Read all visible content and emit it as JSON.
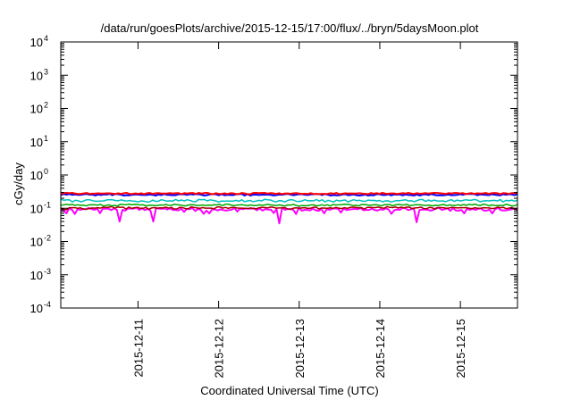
{
  "chart_data": {
    "type": "line",
    "title": "/data/run/goesPlots/archive/2015-12-15/17:00/flux/../bryn/5daysMoon.plot",
    "xlabel": "Coordinated Universal Time (UTC)",
    "ylabel": "cGy/day",
    "yscale": "log",
    "ylim": [
      0.0001,
      10000
    ],
    "y_ticks": [
      {
        "base": "10",
        "exp": "-4"
      },
      {
        "base": "10",
        "exp": "-3"
      },
      {
        "base": "10",
        "exp": "-2"
      },
      {
        "base": "10",
        "exp": "-1"
      },
      {
        "base": "10",
        "exp": "0"
      },
      {
        "base": "10",
        "exp": "1"
      },
      {
        "base": "10",
        "exp": "2"
      },
      {
        "base": "10",
        "exp": "3"
      },
      {
        "base": "10",
        "exp": "4"
      }
    ],
    "xlim": [
      "2015-12-10T01:00",
      "2015-12-15T17:00"
    ],
    "x_ticks": [
      "2015-12-11",
      "2015-12-12",
      "2015-12-13",
      "2015-12-14",
      "2015-12-15"
    ],
    "grid": false,
    "legend": "none",
    "series": [
      {
        "color": "#ff00ff",
        "values": [
          0.09,
          0.089,
          0.07,
          0.1,
          0.091,
          0.067,
          0.095,
          0.09,
          0.096,
          0.093,
          0.102,
          0.095,
          0.09,
          0.098,
          0.071,
          0.098,
          0.097,
          0.097,
          0.088,
          0.099,
          0.091,
          0.04,
          0.09,
          0.085,
          0.098,
          0.098,
          0.097,
          0.105,
          0.089,
          0.1,
          0.088,
          0.096,
          0.085,
          0.04,
          0.102,
          0.098,
          0.096,
          0.099,
          0.092,
          0.1,
          0.089,
          0.089,
          0.086,
          0.098,
          0.078,
          0.096,
          0.094,
          0.102,
          0.083,
          0.096,
          0.089,
          0.068,
          0.085,
          0.07,
          0.092,
          0.093,
          0.086,
          0.093,
          0.088,
          0.085,
          0.088,
          0.091,
          0.102,
          0.08,
          0.098,
          0.094,
          0.099,
          0.097,
          0.098,
          0.1,
          0.087,
          0.1,
          0.085,
          0.095,
          0.091,
          0.091,
          0.072,
          0.095,
          0.035,
          0.105,
          0.09,
          0.095,
          0.095,
          0.089,
          0.067,
          0.105,
          0.085,
          0.089,
          0.089,
          0.086,
          0.098,
          0.087,
          0.084,
          0.095,
          0.07,
          0.095,
          0.09,
          0.097,
          0.099,
          0.096,
          0.074,
          0.098,
          0.088,
          0.092,
          0.094,
          0.096,
          0.094,
          0.103,
          0.087,
          0.09,
          0.088,
          0.098,
          0.089,
          0.085,
          0.093,
          0.09,
          0.1,
          0.092,
          0.068,
          0.087,
          0.092,
          0.09,
          0.103,
          0.1,
          0.088,
          0.094,
          0.101,
          0.038,
          0.088,
          0.092,
          0.091,
          0.09,
          0.085,
          0.089,
          0.102,
          0.102,
          0.089,
          0.094,
          0.1,
          0.084,
          0.101,
          0.086,
          0.085,
          0.089,
          0.07,
          0.097,
          0.089,
          0.096,
          0.09,
          0.096,
          0.099,
          0.085,
          0.085,
          0.091,
          0.07,
          0.092,
          0.105,
          0.088,
          0.086,
          0.087,
          0.09,
          0.094,
          0.098,
          0.087
        ]
      },
      {
        "color": "#aa0000",
        "values": [
          0.102,
          0.094,
          0.09,
          0.104,
          0.104,
          0.104,
          0.1,
          0.103,
          0.093,
          0.094,
          0.098,
          0.102,
          0.101,
          0.104,
          0.101,
          0.108,
          0.105,
          0.108,
          0.112,
          0.101,
          0.109,
          0.107,
          0.108,
          0.095,
          0.109,
          0.1,
          0.104,
          0.107,
          0.1,
          0.1,
          0.106,
          0.093,
          0.102,
          0.105,
          0.1,
          0.103,
          0.102,
          0.108,
          0.101,
          0.106,
          0.095,
          0.096,
          0.107,
          0.104,
          0.097,
          0.097,
          0.111,
          0.106,
          0.102,
          0.1,
          0.105,
          0.101,
          0.101,
          0.101,
          0.096,
          0.108,
          0.111,
          0.101,
          0.106,
          0.1,
          0.105,
          0.107,
          0.102,
          0.101,
          0.101,
          0.099,
          0.098,
          0.103,
          0.097,
          0.097,
          0.104,
          0.106,
          0.105,
          0.103,
          0.109,
          0.106,
          0.101,
          0.102,
          0.103,
          0.104,
          0.095,
          0.093,
          0.101,
          0.103,
          0.1,
          0.102,
          0.104,
          0.099,
          0.1,
          0.107,
          0.108,
          0.095,
          0.102,
          0.101,
          0.1,
          0.103,
          0.1,
          0.106,
          0.101,
          0.098,
          0.104,
          0.1,
          0.106,
          0.108,
          0.106,
          0.102,
          0.105,
          0.095,
          0.106,
          0.107,
          0.105,
          0.105,
          0.109,
          0.103,
          0.1,
          0.112,
          0.106,
          0.105,
          0.109,
          0.102,
          0.108,
          0.102,
          0.109,
          0.107,
          0.096,
          0.103,
          0.104,
          0.108,
          0.097,
          0.097,
          0.106,
          0.103,
          0.094,
          0.105,
          0.105,
          0.104,
          0.099,
          0.102,
          0.107,
          0.104,
          0.102,
          0.104,
          0.104,
          0.104,
          0.1,
          0.098,
          0.104,
          0.1,
          0.1,
          0.104,
          0.103,
          0.102,
          0.098,
          0.1,
          0.108,
          0.104,
          0.107,
          0.097,
          0.101,
          0.105,
          0.096,
          0.099
        ]
      },
      {
        "color": "#00aa00",
        "values": [
          0.123,
          0.127,
          0.131,
          0.127,
          0.13,
          0.123,
          0.127,
          0.122,
          0.124,
          0.118,
          0.127,
          0.127,
          0.127,
          0.124,
          0.131,
          0.118,
          0.121,
          0.127,
          0.118,
          0.122,
          0.117,
          0.132,
          0.129,
          0.128,
          0.133,
          0.127,
          0.131,
          0.13,
          0.125,
          0.128,
          0.118,
          0.122,
          0.124,
          0.12,
          0.12,
          0.126,
          0.124,
          0.13,
          0.123,
          0.122,
          0.132,
          0.128,
          0.125,
          0.12,
          0.118,
          0.125,
          0.128,
          0.127,
          0.121,
          0.122,
          0.125,
          0.121,
          0.124,
          0.122,
          0.128,
          0.126,
          0.131,
          0.12,
          0.132,
          0.133,
          0.125,
          0.119,
          0.124,
          0.126,
          0.128,
          0.123,
          0.119,
          0.126,
          0.121,
          0.12,
          0.127,
          0.122,
          0.126,
          0.131,
          0.126,
          0.123,
          0.121,
          0.126,
          0.122,
          0.116,
          0.126,
          0.124,
          0.132,
          0.121,
          0.117,
          0.121,
          0.119,
          0.119,
          0.125,
          0.127,
          0.119,
          0.121,
          0.128,
          0.12,
          0.128,
          0.117,
          0.13,
          0.125,
          0.127,
          0.128,
          0.132,
          0.131,
          0.128,
          0.121,
          0.123,
          0.117,
          0.129,
          0.13,
          0.126,
          0.122,
          0.126,
          0.128,
          0.124,
          0.118,
          0.128,
          0.129,
          0.129,
          0.118,
          0.126,
          0.131,
          0.127,
          0.125,
          0.132,
          0.119,
          0.123,
          0.128,
          0.127,
          0.126,
          0.122,
          0.122,
          0.124,
          0.118,
          0.123,
          0.12,
          0.126,
          0.13,
          0.12,
          0.126,
          0.122,
          0.121,
          0.128,
          0.122,
          0.129,
          0.122,
          0.132,
          0.126,
          0.133,
          0.124,
          0.121,
          0.133,
          0.128,
          0.118,
          0.126,
          0.121,
          0.12,
          0.122,
          0.12,
          0.133,
          0.125,
          0.117,
          0.119,
          0.13
        ]
      },
      {
        "color": "#00bfbf",
        "values": [
          0.186,
          0.175,
          0.178,
          0.181,
          0.155,
          0.173,
          0.169,
          0.157,
          0.165,
          0.181,
          0.18,
          0.17,
          0.162,
          0.162,
          0.166,
          0.167,
          0.178,
          0.182,
          0.181,
          0.171,
          0.169,
          0.178,
          0.171,
          0.164,
          0.172,
          0.163,
          0.162,
          0.156,
          0.167,
          0.162,
          0.155,
          0.157,
          0.176,
          0.16,
          0.163,
          0.181,
          0.173,
          0.163,
          0.168,
          0.164,
          0.184,
          0.168,
          0.177,
          0.166,
          0.18,
          0.172,
          0.16,
          0.158,
          0.184,
          0.181,
          0.184,
          0.167,
          0.179,
          0.173,
          0.165,
          0.154,
          0.165,
          0.162,
          0.165,
          0.163,
          0.163,
          0.173,
          0.162,
          0.179,
          0.158,
          0.167,
          0.172,
          0.158,
          0.164,
          0.173,
          0.167,
          0.186,
          0.18,
          0.177,
          0.163,
          0.156,
          0.17,
          0.168,
          0.155,
          0.172,
          0.182,
          0.177,
          0.161,
          0.16,
          0.165,
          0.181,
          0.168,
          0.169,
          0.168,
          0.183,
          0.164,
          0.18,
          0.156,
          0.173,
          0.164,
          0.156,
          0.175,
          0.166,
          0.172,
          0.177,
          0.155,
          0.17,
          0.181,
          0.17,
          0.174,
          0.163,
          0.161,
          0.176,
          0.172,
          0.173,
          0.165,
          0.172,
          0.157,
          0.167,
          0.168,
          0.155,
          0.163,
          0.171,
          0.169,
          0.175,
          0.181,
          0.166,
          0.17,
          0.158,
          0.17,
          0.183,
          0.183,
          0.16,
          0.177,
          0.163,
          0.176,
          0.167,
          0.164,
          0.167,
          0.158,
          0.172,
          0.181,
          0.16,
          0.176,
          0.167,
          0.172,
          0.18,
          0.175,
          0.175,
          0.184,
          0.175,
          0.157,
          0.165,
          0.169,
          0.167,
          0.171,
          0.173,
          0.165,
          0.183,
          0.155,
          0.173,
          0.168,
          0.176,
          0.162,
          0.176
        ]
      },
      {
        "color": "#0000ff",
        "values": [
          0.247,
          0.268,
          0.256,
          0.268,
          0.254,
          0.262,
          0.254,
          0.254,
          0.263,
          0.27,
          0.257,
          0.259,
          0.243,
          0.259,
          0.251,
          0.26,
          0.259,
          0.272,
          0.247,
          0.27,
          0.264,
          0.253,
          0.241,
          0.248,
          0.246,
          0.255,
          0.26,
          0.257,
          0.254,
          0.251,
          0.25,
          0.26,
          0.253,
          0.242,
          0.259,
          0.249,
          0.268,
          0.254,
          0.25,
          0.247,
          0.247,
          0.263,
          0.264,
          0.263,
          0.252,
          0.266,
          0.258,
          0.266,
          0.264,
          0.255,
          0.241,
          0.249,
          0.263,
          0.264,
          0.265,
          0.246,
          0.265,
          0.248,
          0.253,
          0.251,
          0.249,
          0.263,
          0.265,
          0.271,
          0.242,
          0.265,
          0.242,
          0.256,
          0.256,
          0.251,
          0.256,
          0.255,
          0.258,
          0.253,
          0.243,
          0.249,
          0.259,
          0.255,
          0.264,
          0.272,
          0.258,
          0.248,
          0.256,
          0.264,
          0.264,
          0.255,
          0.25,
          0.263,
          0.265,
          0.266,
          0.267,
          0.251,
          0.27,
          0.253,
          0.242,
          0.251,
          0.244,
          0.248,
          0.258,
          0.267,
          0.247,
          0.253,
          0.26,
          0.248,
          0.241,
          0.249,
          0.258,
          0.242,
          0.249,
          0.246,
          0.265,
          0.265,
          0.25,
          0.251,
          0.263,
          0.244,
          0.26,
          0.257,
          0.261,
          0.245,
          0.26,
          0.251,
          0.249,
          0.242,
          0.26,
          0.241,
          0.258,
          0.262,
          0.25,
          0.268,
          0.254,
          0.246,
          0.247,
          0.246,
          0.25,
          0.259,
          0.247,
          0.249,
          0.253,
          0.265,
          0.254,
          0.269,
          0.271,
          0.268,
          0.266,
          0.248,
          0.26,
          0.256,
          0.254,
          0.249,
          0.264,
          0.256,
          0.249,
          0.245,
          0.264,
          0.255,
          0.264,
          0.26,
          0.248,
          0.264
        ]
      },
      {
        "color": "#ff0000",
        "values": [
          0.264,
          0.283,
          0.291,
          0.284,
          0.29,
          0.276,
          0.27,
          0.271,
          0.28,
          0.289,
          0.27,
          0.275,
          0.276,
          0.281,
          0.278,
          0.276,
          0.282,
          0.282,
          0.275,
          0.27,
          0.281,
          0.27,
          0.283,
          0.29,
          0.268,
          0.269,
          0.28,
          0.271,
          0.282,
          0.264,
          0.283,
          0.288,
          0.269,
          0.282,
          0.285,
          0.278,
          0.278,
          0.277,
          0.285,
          0.277,
          0.284,
          0.285,
          0.267,
          0.285,
          0.277,
          0.286,
          0.289,
          0.27,
          0.291,
          0.275,
          0.289,
          0.29,
          0.273,
          0.265,
          0.283,
          0.271,
          0.27,
          0.281,
          0.267,
          0.284,
          0.281,
          0.268,
          0.266,
          0.288,
          0.28,
          0.267,
          0.265,
          0.288,
          0.29,
          0.285,
          0.288,
          0.291,
          0.277,
          0.287,
          0.282,
          0.27,
          0.284,
          0.266,
          0.279,
          0.28,
          0.271,
          0.281,
          0.287,
          0.278,
          0.272,
          0.273,
          0.268,
          0.285,
          0.269,
          0.27,
          0.266,
          0.271,
          0.268,
          0.272,
          0.283,
          0.273,
          0.289,
          0.265,
          0.273,
          0.282,
          0.277,
          0.28,
          0.279,
          0.278,
          0.284,
          0.274,
          0.271,
          0.266,
          0.287,
          0.273,
          0.285,
          0.271,
          0.291,
          0.275,
          0.273,
          0.28,
          0.28,
          0.27,
          0.275,
          0.285,
          0.276,
          0.291,
          0.276,
          0.27,
          0.285,
          0.273,
          0.279,
          0.287,
          0.276,
          0.283,
          0.29,
          0.288,
          0.284,
          0.277,
          0.27,
          0.286,
          0.278,
          0.289,
          0.288,
          0.279,
          0.286,
          0.267,
          0.279,
          0.286,
          0.272,
          0.282,
          0.277,
          0.28,
          0.289,
          0.27,
          0.283,
          0.289,
          0.284,
          0.264,
          0.286,
          0.282,
          0.27,
          0.285,
          0.287,
          0.288
        ]
      }
    ]
  }
}
